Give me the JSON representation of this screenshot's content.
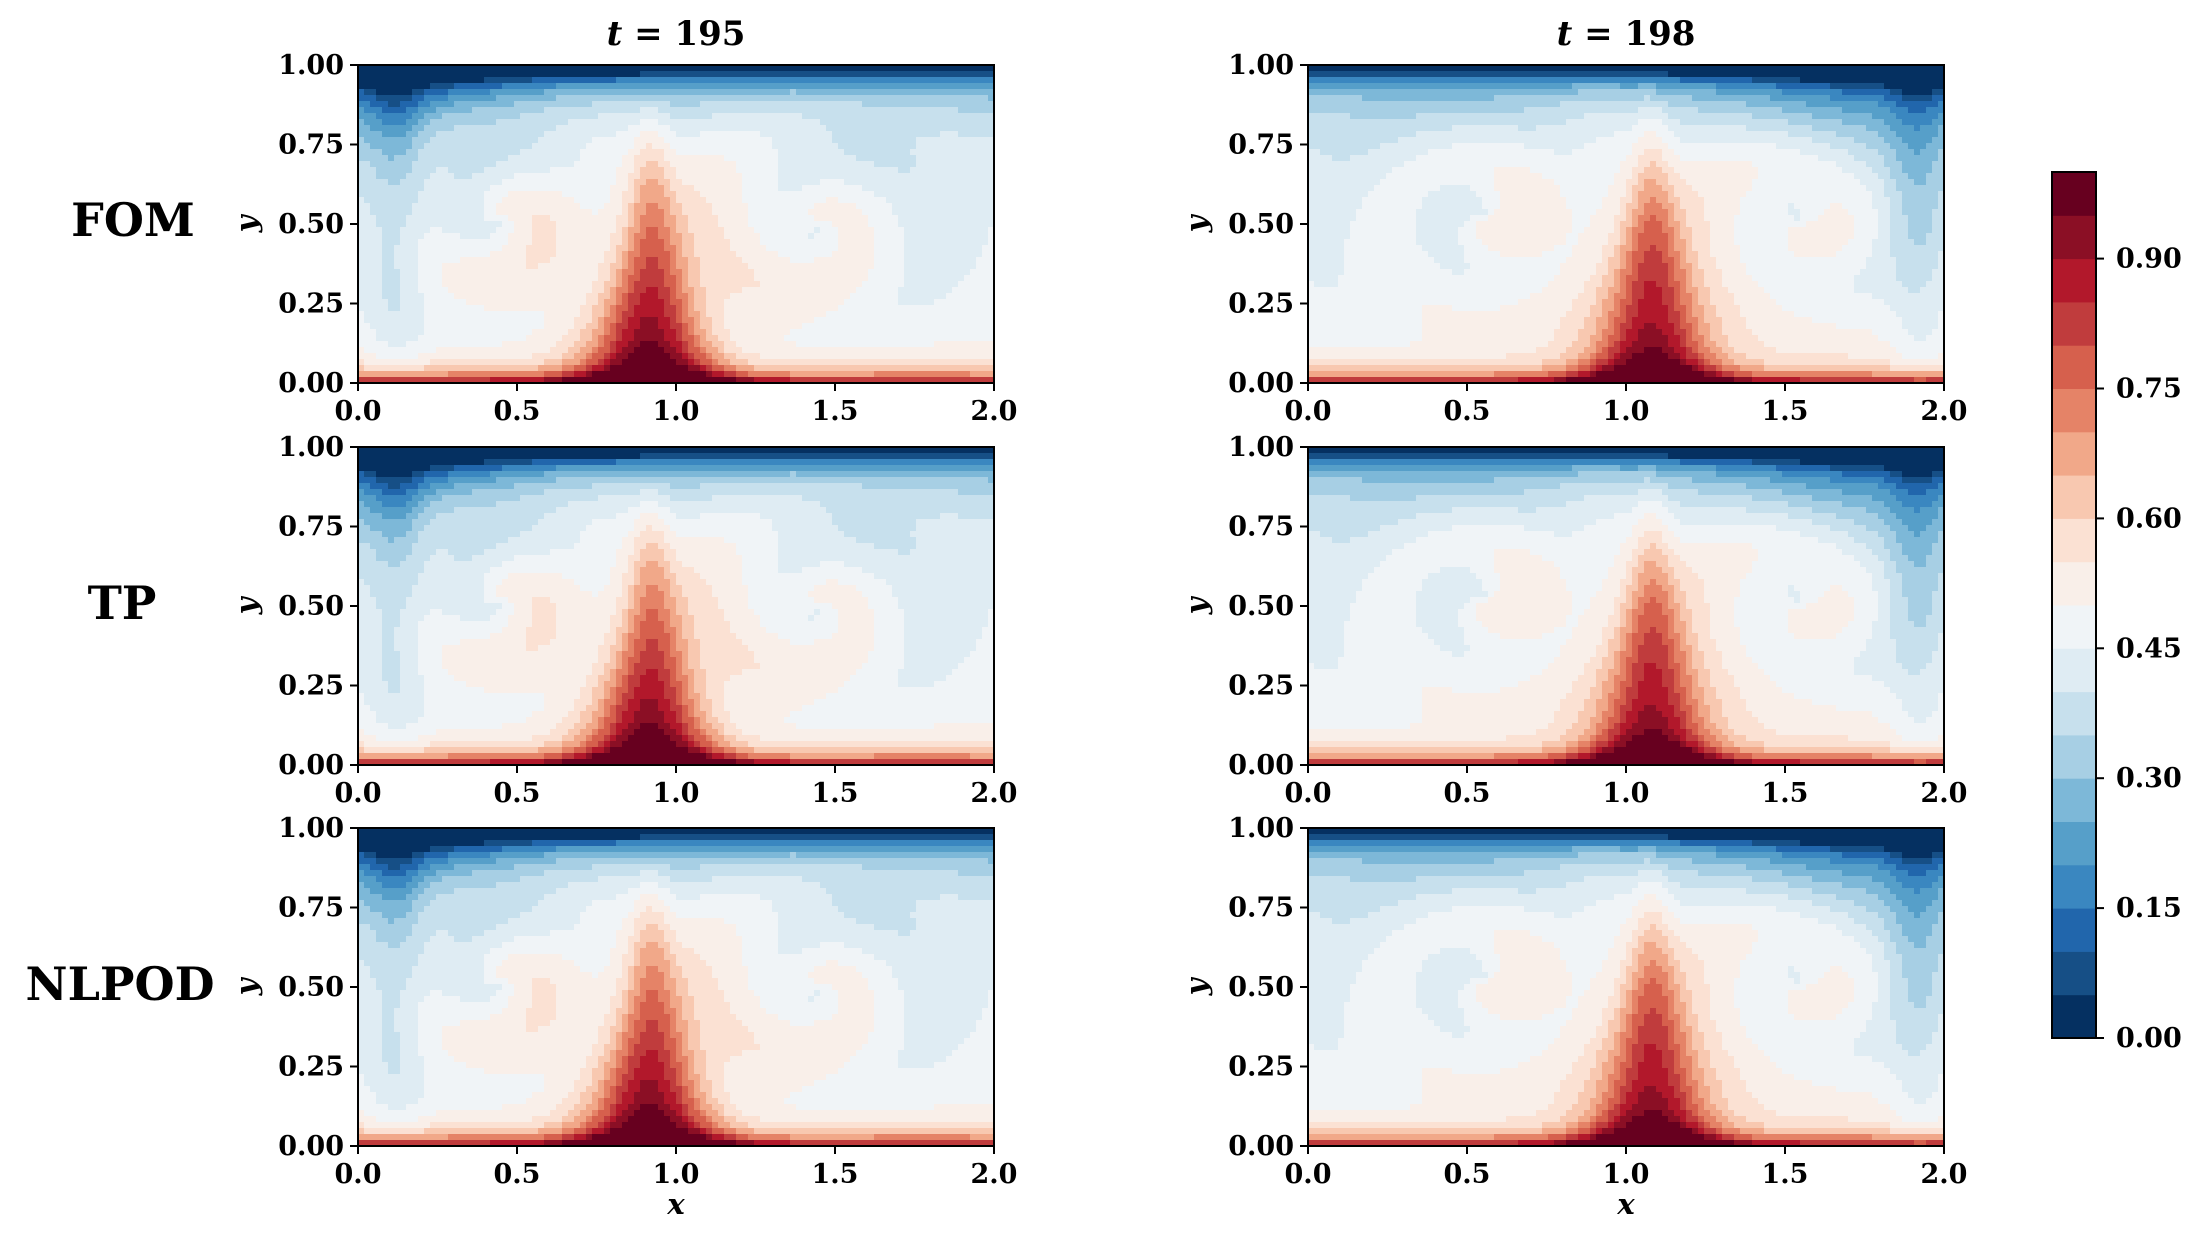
{
  "figure": {
    "column_titles": [
      "t = 195",
      "t = 198"
    ],
    "row_labels": [
      "FOM",
      "TP",
      "NLPOD"
    ]
  },
  "chart_data": {
    "type": "heatmap",
    "panels": [
      {
        "row": "FOM",
        "column": "t = 195",
        "plume_x": 0.92
      },
      {
        "row": "FOM",
        "column": "t = 198",
        "plume_x": 1.08
      },
      {
        "row": "TP",
        "column": "t = 195",
        "plume_x": 0.92
      },
      {
        "row": "TP",
        "column": "t = 198",
        "plume_x": 1.08
      },
      {
        "row": "NLPOD",
        "column": "t = 195",
        "plume_x": 0.92
      },
      {
        "row": "NLPOD",
        "column": "t = 198",
        "plume_x": 1.08
      }
    ],
    "xlabel": "x",
    "ylabel": "y",
    "xlim": [
      0.0,
      2.0
    ],
    "ylim": [
      0.0,
      1.0
    ],
    "xticks": [
      "0.0",
      "0.5",
      "1.0",
      "1.5",
      "2.0"
    ],
    "yticks": [
      "0.00",
      "0.25",
      "0.50",
      "0.75",
      "1.00"
    ],
    "colorbar": {
      "range": [
        0.0,
        1.0
      ],
      "ticks": [
        "0.00",
        "0.15",
        "0.30",
        "0.45",
        "0.60",
        "0.75",
        "0.90"
      ],
      "colormap": [
        "#053061",
        "#164f86",
        "#2166ac",
        "#3a87c0",
        "#569fc9",
        "#7db8d8",
        "#a7cfe4",
        "#c7e0ed",
        "#dfecf3",
        "#f0f4f7",
        "#f9efe9",
        "#fbe1d3",
        "#f8c8b0",
        "#f1a889",
        "#e58367",
        "#d6604d",
        "#c03c3d",
        "#b2182b",
        "#8b0f25",
        "#67001f"
      ]
    }
  }
}
